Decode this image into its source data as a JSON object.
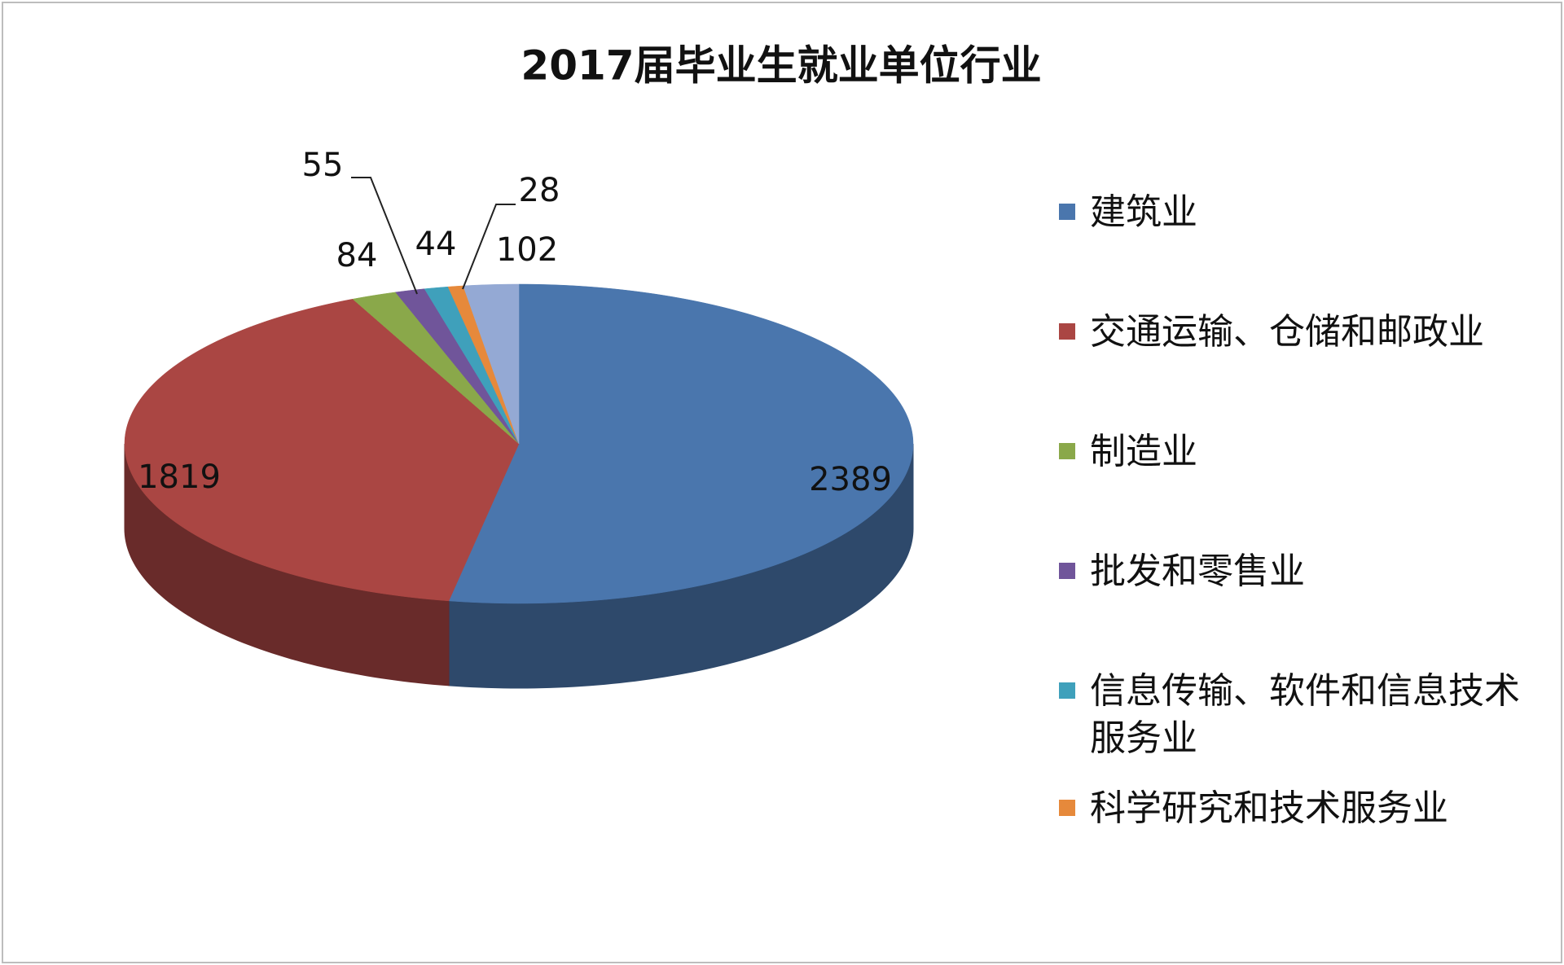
{
  "chart_data": {
    "type": "pie",
    "title": "2017届毕业生就业单位行业",
    "categories": [
      "建筑业",
      "交通运输、仓储和邮政业",
      "制造业",
      "批发和零售业",
      "信息传输、软件和信息技术服务业",
      "科学研究和技术服务业",
      null
    ],
    "values": [
      2389,
      1819,
      84,
      55,
      44,
      28,
      102
    ],
    "colors": [
      "#4a76ad",
      "#aa4643",
      "#8aa84a",
      "#70559a",
      "#3fa0bb",
      "#e6893b",
      "#94a9d4"
    ],
    "legend": "right"
  }
}
